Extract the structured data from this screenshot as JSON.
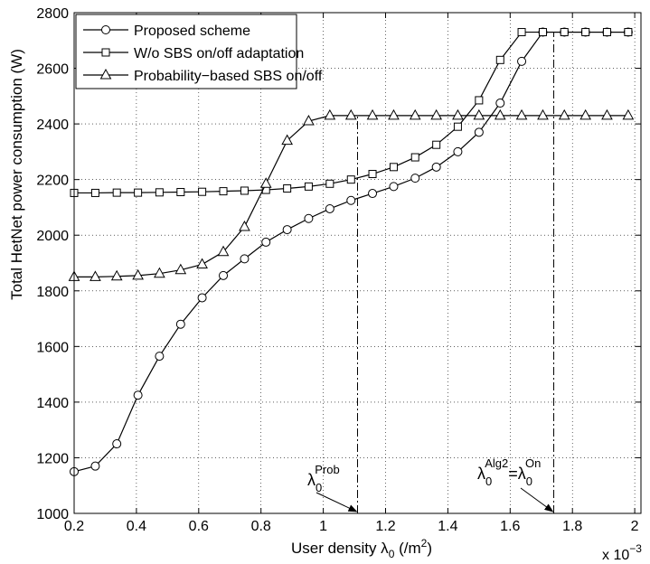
{
  "chart_data": {
    "type": "line",
    "title": "",
    "xlabel_main": "User density λ",
    "xlabel_sub": "0",
    "xlabel_unit": " (/m",
    "xlabel_unit_sup": "2",
    "xlabel_unit_close": ")",
    "ylabel": "Total HetNet power consumption (W)",
    "x_multiplier_text": "x 10",
    "x_multiplier_exp": "−3",
    "xlim": [
      0.2,
      2.02
    ],
    "ylim": [
      1000,
      2800
    ],
    "xticks": [
      0.2,
      0.4,
      0.6,
      0.8,
      1.0,
      1.2,
      1.4,
      1.6,
      1.8,
      2.0
    ],
    "xtick_labels": [
      "0.2",
      "0.4",
      "0.6",
      "0.8",
      "1",
      "1.2",
      "1.4",
      "1.6",
      "1.8",
      "2"
    ],
    "yticks": [
      1000,
      1200,
      1400,
      1600,
      1800,
      2000,
      2200,
      2400,
      2600,
      2800
    ],
    "ytick_labels": [
      "1000",
      "1200",
      "1400",
      "1600",
      "1800",
      "2000",
      "2200",
      "2400",
      "2600",
      "2800"
    ],
    "grid": true,
    "legend_position": "top-left",
    "x": [
      0.2,
      0.268,
      0.337,
      0.405,
      0.474,
      0.542,
      0.611,
      0.679,
      0.747,
      0.816,
      0.884,
      0.953,
      1.021,
      1.089,
      1.158,
      1.226,
      1.295,
      1.363,
      1.432,
      1.5,
      1.568,
      1.637,
      1.705,
      1.774,
      1.842,
      1.911,
      1.979
    ],
    "series": [
      {
        "name": "Proposed scheme",
        "marker": "circle",
        "values": [
          1150,
          1170,
          1250,
          1425,
          1565,
          1680,
          1775,
          1855,
          1915,
          1975,
          2020,
          2060,
          2095,
          2125,
          2150,
          2175,
          2205,
          2245,
          2300,
          2370,
          2475,
          2625,
          2730,
          2730,
          2730,
          2730,
          2730
        ]
      },
      {
        "name": "W/o SBS on/off adaptation",
        "marker": "square",
        "values": [
          2152,
          2152,
          2153,
          2153,
          2154,
          2155,
          2156,
          2158,
          2160,
          2163,
          2168,
          2175,
          2185,
          2200,
          2220,
          2245,
          2280,
          2325,
          2390,
          2485,
          2630,
          2730,
          2730,
          2730,
          2730,
          2730,
          2730
        ]
      },
      {
        "name": "Probability−based SBS on/off",
        "marker": "triangle",
        "values": [
          1850,
          1850,
          1852,
          1855,
          1862,
          1875,
          1895,
          1940,
          2030,
          2185,
          2340,
          2410,
          2430,
          2430,
          2430,
          2430,
          2430,
          2430,
          2430,
          2430,
          2430,
          2430,
          2430,
          2430,
          2430,
          2430,
          2430
        ]
      }
    ],
    "vlines": [
      {
        "x": 1.11,
        "from_y": 1000,
        "to_y": 2430
      },
      {
        "x": 1.74,
        "from_y": 1000,
        "to_y": 2730
      }
    ],
    "annotations": [
      {
        "base": "λ",
        "sub": "0",
        "sup": "Prob",
        "arrow_to": [
          1.11,
          1000
        ]
      },
      {
        "base": "λ",
        "sub": "0",
        "sup": "Alg2",
        "eq": "=λ",
        "sub2": "0",
        "sup2": "On",
        "arrow_to": [
          1.74,
          1000
        ]
      }
    ]
  }
}
